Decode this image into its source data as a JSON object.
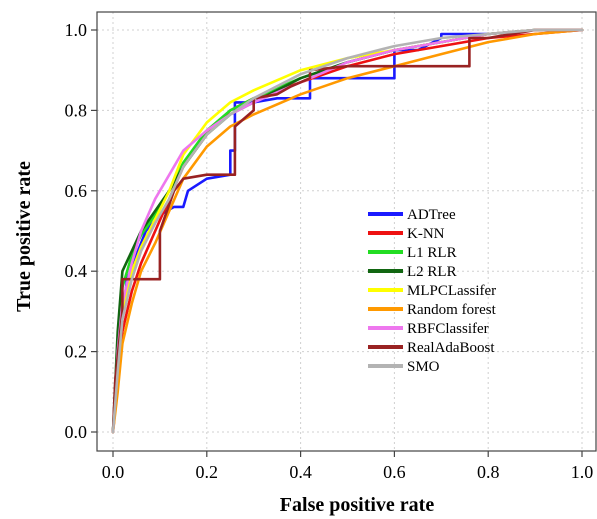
{
  "chart_data": {
    "type": "line",
    "xlabel": "False positive rate",
    "ylabel": "True positive rate",
    "xlim": [
      0,
      1
    ],
    "ylim": [
      0,
      1
    ],
    "xticks": [
      "0.0",
      "0.2",
      "0.4",
      "0.6",
      "0.8",
      "1.0"
    ],
    "yticks": [
      "0.0",
      "0.2",
      "0.4",
      "0.6",
      "0.8",
      "1.0"
    ],
    "grid": true,
    "legend_position": "center-right",
    "series": [
      {
        "name": "ADTree",
        "color": "#1a1aff",
        "x": [
          0.0,
          0.01,
          0.03,
          0.05,
          0.07,
          0.1,
          0.13,
          0.15,
          0.16,
          0.2,
          0.25,
          0.25,
          0.26,
          0.26,
          0.3,
          0.35,
          0.42,
          0.42,
          0.5,
          0.6,
          0.6,
          0.65,
          0.7,
          0.7,
          0.8,
          0.9,
          1.0
        ],
        "y": [
          0.0,
          0.2,
          0.38,
          0.44,
          0.5,
          0.54,
          0.56,
          0.56,
          0.6,
          0.63,
          0.64,
          0.7,
          0.7,
          0.82,
          0.82,
          0.83,
          0.83,
          0.88,
          0.88,
          0.88,
          0.95,
          0.95,
          0.98,
          0.99,
          0.99,
          1.0,
          1.0
        ]
      },
      {
        "name": "K-NN",
        "color": "#ee1111",
        "x": [
          0.0,
          0.01,
          0.02,
          0.04,
          0.06,
          0.09,
          0.12,
          0.15,
          0.2,
          0.25,
          0.3,
          0.4,
          0.5,
          0.6,
          0.7,
          0.8,
          0.9,
          1.0
        ],
        "y": [
          0.0,
          0.12,
          0.25,
          0.35,
          0.42,
          0.5,
          0.58,
          0.66,
          0.74,
          0.8,
          0.83,
          0.87,
          0.91,
          0.94,
          0.96,
          0.98,
          0.99,
          1.0
        ]
      },
      {
        "name": "L1 RLR",
        "color": "#22dd22",
        "x": [
          0.0,
          0.01,
          0.02,
          0.04,
          0.06,
          0.09,
          0.12,
          0.15,
          0.2,
          0.25,
          0.3,
          0.4,
          0.5,
          0.6,
          0.7,
          0.8,
          0.9,
          1.0
        ],
        "y": [
          0.0,
          0.22,
          0.36,
          0.44,
          0.49,
          0.54,
          0.6,
          0.67,
          0.75,
          0.8,
          0.83,
          0.88,
          0.92,
          0.95,
          0.97,
          0.99,
          1.0,
          1.0
        ]
      },
      {
        "name": "L2 RLR",
        "color": "#116611",
        "x": [
          0.0,
          0.01,
          0.02,
          0.04,
          0.06,
          0.09,
          0.12,
          0.15,
          0.2,
          0.25,
          0.3,
          0.4,
          0.5,
          0.6,
          0.7,
          0.8,
          0.9,
          1.0
        ],
        "y": [
          0.0,
          0.25,
          0.4,
          0.45,
          0.5,
          0.55,
          0.6,
          0.66,
          0.74,
          0.79,
          0.82,
          0.88,
          0.92,
          0.95,
          0.97,
          0.99,
          1.0,
          1.0
        ]
      },
      {
        "name": "MLPCLassifer",
        "color": "#ffff00",
        "x": [
          0.0,
          0.01,
          0.02,
          0.04,
          0.06,
          0.09,
          0.12,
          0.15,
          0.2,
          0.25,
          0.3,
          0.4,
          0.5,
          0.6,
          0.7,
          0.8,
          0.9,
          1.0
        ],
        "y": [
          0.0,
          0.17,
          0.3,
          0.4,
          0.46,
          0.53,
          0.6,
          0.69,
          0.77,
          0.82,
          0.85,
          0.9,
          0.93,
          0.95,
          0.97,
          0.99,
          1.0,
          1.0
        ]
      },
      {
        "name": "Random forest",
        "color": "#ff9900",
        "x": [
          0.0,
          0.01,
          0.02,
          0.04,
          0.06,
          0.09,
          0.12,
          0.15,
          0.2,
          0.25,
          0.3,
          0.4,
          0.5,
          0.6,
          0.7,
          0.8,
          0.9,
          1.0
        ],
        "y": [
          0.0,
          0.1,
          0.22,
          0.32,
          0.4,
          0.47,
          0.55,
          0.63,
          0.71,
          0.76,
          0.79,
          0.84,
          0.88,
          0.91,
          0.94,
          0.97,
          0.99,
          1.0
        ]
      },
      {
        "name": "RBFClassifer",
        "color": "#ee77ee",
        "x": [
          0.0,
          0.01,
          0.02,
          0.04,
          0.06,
          0.09,
          0.12,
          0.15,
          0.2,
          0.25,
          0.3,
          0.4,
          0.5,
          0.6,
          0.7,
          0.8,
          0.9,
          1.0
        ],
        "y": [
          0.0,
          0.2,
          0.32,
          0.42,
          0.5,
          0.58,
          0.64,
          0.7,
          0.75,
          0.79,
          0.82,
          0.87,
          0.92,
          0.95,
          0.97,
          0.99,
          1.0,
          1.0
        ]
      },
      {
        "name": "RealAdaBoost",
        "color": "#992222",
        "x": [
          0.0,
          0.005,
          0.02,
          0.02,
          0.05,
          0.1,
          0.1,
          0.13,
          0.15,
          0.2,
          0.26,
          0.26,
          0.3,
          0.3,
          0.35,
          0.38,
          0.42,
          0.42,
          0.5,
          0.6,
          0.65,
          0.76,
          0.76,
          0.8,
          0.9,
          1.0
        ],
        "y": [
          0.0,
          0.13,
          0.3,
          0.38,
          0.38,
          0.38,
          0.5,
          0.6,
          0.63,
          0.64,
          0.64,
          0.76,
          0.8,
          0.83,
          0.84,
          0.86,
          0.88,
          0.9,
          0.91,
          0.91,
          0.91,
          0.91,
          0.98,
          0.98,
          1.0,
          1.0
        ]
      },
      {
        "name": "SMO",
        "color": "#b3b3b3",
        "x": [
          0.0,
          0.01,
          0.02,
          0.04,
          0.06,
          0.09,
          0.12,
          0.15,
          0.2,
          0.25,
          0.3,
          0.4,
          0.5,
          0.6,
          0.7,
          0.8,
          0.9,
          1.0
        ],
        "y": [
          0.0,
          0.15,
          0.28,
          0.38,
          0.45,
          0.52,
          0.58,
          0.66,
          0.74,
          0.79,
          0.83,
          0.89,
          0.93,
          0.96,
          0.98,
          0.99,
          1.0,
          1.0
        ]
      }
    ]
  }
}
